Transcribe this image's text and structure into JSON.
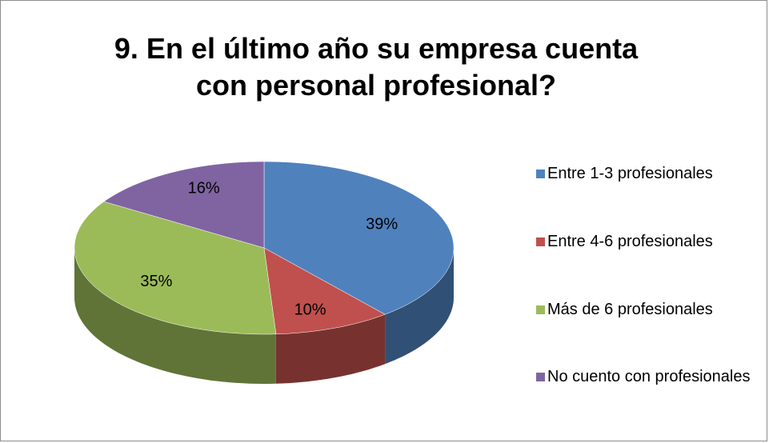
{
  "chart_data": {
    "type": "pie3d",
    "title": "9. En el último año su empresa cuenta con personal profesional?",
    "categories": [
      "Entre 1-3 profesionales",
      "Entre 4-6 profesionales",
      "Más de 6 profesionales",
      "No cuento con profesionales"
    ],
    "values": [
      39,
      10,
      35,
      16
    ],
    "value_labels": [
      "39%",
      "10%",
      "35%",
      "16%"
    ],
    "colors": [
      "#4f81bd",
      "#c0504d",
      "#9bbb59",
      "#8064a2"
    ],
    "legend": "right"
  }
}
